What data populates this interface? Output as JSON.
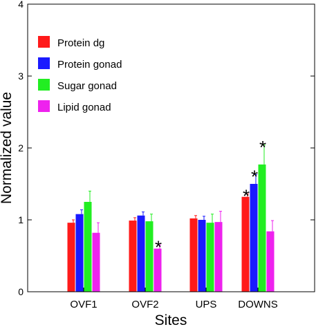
{
  "chart_data": {
    "type": "bar",
    "xlabel": "Sites",
    "ylabel": "Normalized value",
    "categories": [
      "OVF1",
      "OVF2",
      "UPS",
      "DOWNS"
    ],
    "ylim": [
      0,
      4
    ],
    "yticks": [
      "0",
      "1",
      "2",
      "3",
      "4"
    ],
    "legend_position": "top-left",
    "grid": false,
    "series": [
      {
        "name": "Protein dg",
        "color": "#ff1a1a",
        "values": [
          0.96,
          0.99,
          1.02,
          1.32
        ],
        "errors": [
          0.04,
          0.04,
          0.04,
          0.04
        ],
        "significant": [
          false,
          false,
          false,
          true
        ]
      },
      {
        "name": "Protein gonad",
        "color": "#1a1aff",
        "values": [
          1.08,
          1.06,
          1.0,
          1.5
        ],
        "errors": [
          0.06,
          0.05,
          0.05,
          0.13
        ],
        "significant": [
          false,
          false,
          false,
          true
        ]
      },
      {
        "name": "Sugar gonad",
        "color": "#22ee22",
        "values": [
          1.25,
          0.98,
          0.96,
          1.77
        ],
        "errors": [
          0.15,
          0.1,
          0.12,
          0.27
        ],
        "significant": [
          false,
          false,
          false,
          true
        ]
      },
      {
        "name": "Lipid gonad",
        "color": "#ee22ee",
        "values": [
          0.82,
          0.6,
          0.97,
          0.84
        ],
        "errors": [
          0.14,
          0.05,
          0.15,
          0.15
        ],
        "significant": [
          false,
          true,
          false,
          false
        ]
      }
    ],
    "significance_marker": "*"
  }
}
